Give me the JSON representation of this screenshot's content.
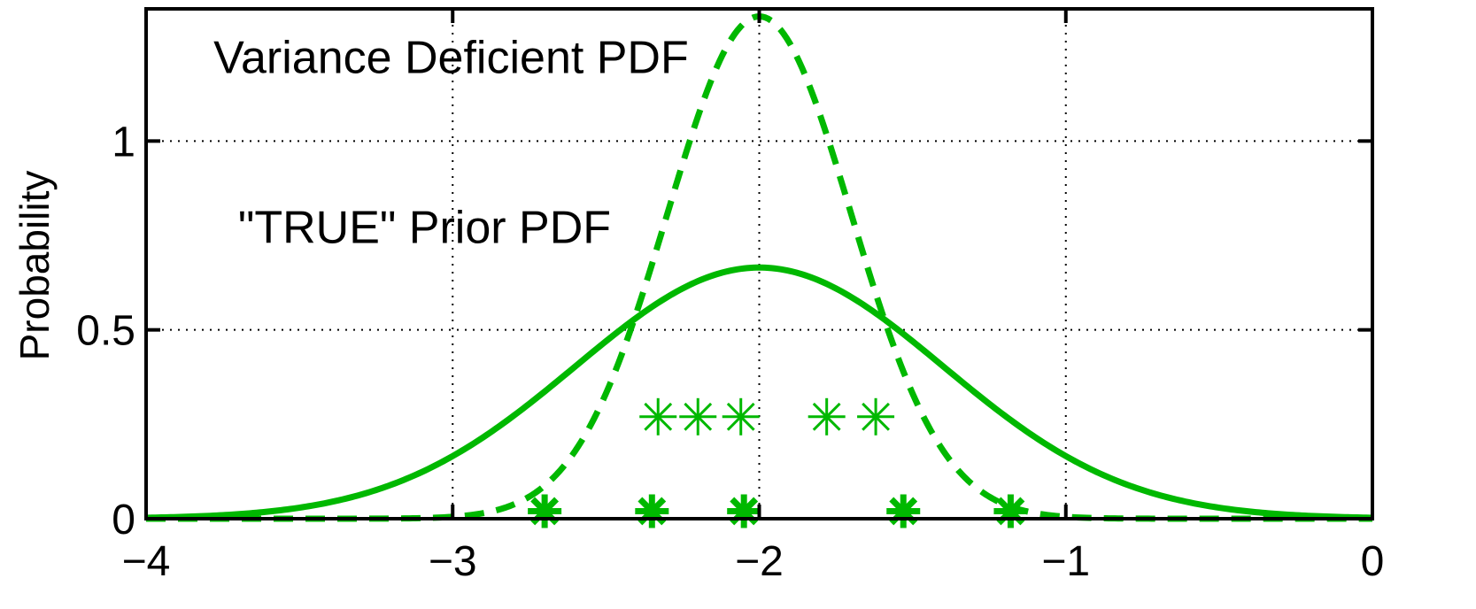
{
  "chart_data": {
    "type": "line",
    "title": "",
    "xlabel": "",
    "ylabel": "Probability",
    "xlim": [
      -4,
      0
    ],
    "ylim": [
      0,
      1.35
    ],
    "grid": true,
    "xticks": [
      -4,
      -3,
      -2,
      -1,
      0
    ],
    "xtick_labels": [
      "−4",
      "−3",
      "−2",
      "−1",
      "0"
    ],
    "yticks": [
      0,
      0.5,
      1
    ],
    "ytick_labels": [
      "0",
      "0.5",
      "1"
    ],
    "series_color": "#00b800",
    "series": [
      {
        "style": "solid",
        "mean": -2.0,
        "std": 0.6,
        "peak": 0.665
      },
      {
        "style": "dashed",
        "mean": -2.0,
        "std": 0.3,
        "peak": 1.33
      }
    ],
    "markers_bold": {
      "style": "bold-asterisk",
      "x": [
        -2.7,
        -2.35,
        -2.05,
        -1.53,
        -1.18
      ],
      "y": [
        0.02,
        0.02,
        0.02,
        0.02,
        0.02
      ]
    },
    "markers_thin": {
      "style": "thin-asterisk",
      "x": [
        -2.33,
        -2.2,
        -2.06,
        -1.78,
        -1.62
      ],
      "y": [
        0.27,
        0.27,
        0.27,
        0.27,
        0.27
      ]
    },
    "annotations": [
      {
        "text": "Variance Deficient PDF",
        "x": -3.78,
        "y": 1.18
      },
      {
        "text": "\"TRUE\" Prior PDF",
        "x": -3.7,
        "y": 0.73
      }
    ]
  }
}
